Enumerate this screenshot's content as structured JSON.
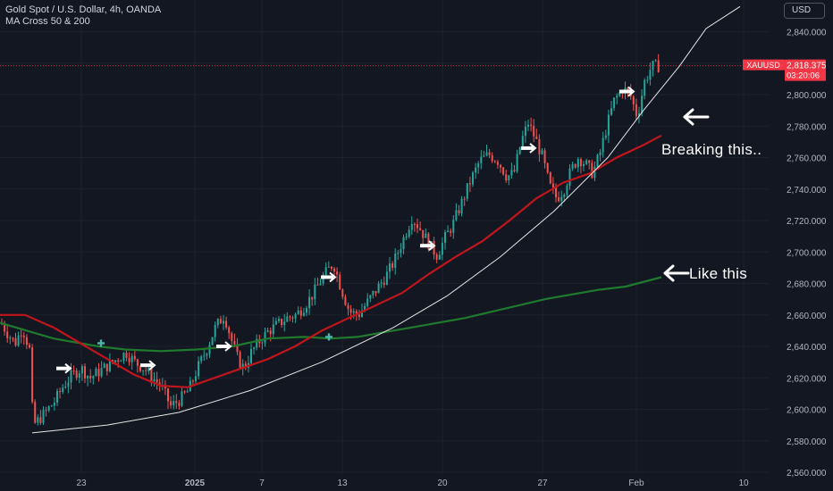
{
  "header": {
    "symbol_title": "Gold Spot / U.S. Dollar, 4h, OANDA",
    "indicator": "MA Cross 50 & 200"
  },
  "currency_button": "USD",
  "price_label": {
    "symbol": "XAUUSD",
    "price": "2,818.375",
    "countdown": "03:20:06"
  },
  "annotations": {
    "breaking": "Breaking this..",
    "like": "Like this"
  },
  "colors": {
    "background": "#131722",
    "up_candle": "#26a69a",
    "down_candle": "#ef5350",
    "ma50": "#c0161b",
    "ma200": "#1f7a2e",
    "price_tag": "#f23645",
    "curve": "#e6e6e6",
    "cross_marker": "#4db6ac"
  },
  "chart_data": {
    "type": "candlestick",
    "title": "Gold Spot / U.S. Dollar, 4h, OANDA",
    "indicator": "MA Cross 50 & 200",
    "x_ticks": [
      "23",
      "2025",
      "7",
      "13",
      "20",
      "27",
      "Feb",
      "10"
    ],
    "y_ticks": [
      2560,
      2580,
      2600,
      2620,
      2640,
      2660,
      2680,
      2700,
      2720,
      2740,
      2760,
      2780,
      2800,
      2820,
      2840
    ],
    "y_tick_labels": [
      "2,560.000",
      "2,580.000",
      "2,600.000",
      "2,620.000",
      "2,640.000",
      "2,660.000",
      "2,680.000",
      "2,700.000",
      "2,720.000",
      "2,740.000",
      "2,760.000",
      "2,780.000",
      "2,800.000",
      "2,820.000",
      "2,840.000"
    ],
    "ylim": [
      2556,
      2850
    ],
    "last_price": 2818.375,
    "close_path": [
      [
        0,
        2655
      ],
      [
        8,
        2648
      ],
      [
        16,
        2642
      ],
      [
        24,
        2652
      ],
      [
        32,
        2638
      ],
      [
        36,
        2590
      ],
      [
        40,
        2592
      ],
      [
        50,
        2598
      ],
      [
        60,
        2605
      ],
      [
        70,
        2615
      ],
      [
        80,
        2622
      ],
      [
        90,
        2626
      ],
      [
        100,
        2620
      ],
      [
        110,
        2624
      ],
      [
        120,
        2628
      ],
      [
        130,
        2632
      ],
      [
        140,
        2636
      ],
      [
        150,
        2630
      ],
      [
        160,
        2626
      ],
      [
        170,
        2620
      ],
      [
        180,
        2614
      ],
      [
        190,
        2602
      ],
      [
        200,
        2606
      ],
      [
        210,
        2612
      ],
      [
        220,
        2626
      ],
      [
        230,
        2638
      ],
      [
        240,
        2652
      ],
      [
        250,
        2660
      ],
      [
        258,
        2644
      ],
      [
        265,
        2632
      ],
      [
        272,
        2626
      ],
      [
        280,
        2636
      ],
      [
        290,
        2644
      ],
      [
        300,
        2650
      ],
      [
        310,
        2654
      ],
      [
        320,
        2658
      ],
      [
        330,
        2660
      ],
      [
        340,
        2666
      ],
      [
        350,
        2674
      ],
      [
        360,
        2684
      ],
      [
        372,
        2693
      ],
      [
        380,
        2678
      ],
      [
        390,
        2662
      ],
      [
        400,
        2660
      ],
      [
        410,
        2668
      ],
      [
        420,
        2676
      ],
      [
        430,
        2684
      ],
      [
        440,
        2694
      ],
      [
        450,
        2708
      ],
      [
        460,
        2722
      ],
      [
        470,
        2714
      ],
      [
        480,
        2704
      ],
      [
        488,
        2698
      ],
      [
        496,
        2708
      ],
      [
        506,
        2718
      ],
      [
        516,
        2732
      ],
      [
        526,
        2746
      ],
      [
        536,
        2758
      ],
      [
        546,
        2762
      ],
      [
        556,
        2758
      ],
      [
        566,
        2748
      ],
      [
        574,
        2750
      ],
      [
        582,
        2770
      ],
      [
        590,
        2782
      ],
      [
        598,
        2772
      ],
      [
        606,
        2760
      ],
      [
        614,
        2742
      ],
      [
        622,
        2734
      ],
      [
        630,
        2740
      ],
      [
        638,
        2752
      ],
      [
        646,
        2760
      ],
      [
        654,
        2756
      ],
      [
        662,
        2750
      ],
      [
        670,
        2762
      ],
      [
        678,
        2780
      ],
      [
        686,
        2796
      ],
      [
        696,
        2804
      ],
      [
        704,
        2800
      ],
      [
        712,
        2786
      ],
      [
        720,
        2808
      ],
      [
        728,
        2818
      ],
      [
        736,
        2818
      ]
    ],
    "ma50": [
      [
        0,
        2660
      ],
      [
        28,
        2660
      ],
      [
        60,
        2652
      ],
      [
        90,
        2642
      ],
      [
        120,
        2632
      ],
      [
        150,
        2622
      ],
      [
        180,
        2615
      ],
      [
        210,
        2614
      ],
      [
        240,
        2620
      ],
      [
        270,
        2626
      ],
      [
        300,
        2632
      ],
      [
        330,
        2640
      ],
      [
        360,
        2650
      ],
      [
        390,
        2658
      ],
      [
        420,
        2666
      ],
      [
        450,
        2674
      ],
      [
        480,
        2686
      ],
      [
        510,
        2697
      ],
      [
        540,
        2707
      ],
      [
        570,
        2720
      ],
      [
        600,
        2734
      ],
      [
        630,
        2744
      ],
      [
        660,
        2750
      ],
      [
        690,
        2760
      ],
      [
        720,
        2768
      ],
      [
        740,
        2774
      ]
    ],
    "ma200": [
      [
        0,
        2655
      ],
      [
        30,
        2650
      ],
      [
        60,
        2645
      ],
      [
        90,
        2642
      ],
      [
        110,
        2640
      ],
      [
        140,
        2638
      ],
      [
        180,
        2637
      ],
      [
        220,
        2638
      ],
      [
        260,
        2640
      ],
      [
        300,
        2645
      ],
      [
        340,
        2646
      ],
      [
        370,
        2645
      ],
      [
        400,
        2646
      ],
      [
        430,
        2649
      ],
      [
        460,
        2652
      ],
      [
        490,
        2655
      ],
      [
        520,
        2658
      ],
      [
        550,
        2662
      ],
      [
        580,
        2666
      ],
      [
        610,
        2670
      ],
      [
        640,
        2673
      ],
      [
        670,
        2676
      ],
      [
        700,
        2678
      ],
      [
        740,
        2684
      ]
    ],
    "ma_crosses": [
      [
        113,
        2642
      ],
      [
        368,
        2646
      ]
    ],
    "arrow_markers": [
      [
        76,
        2626
      ],
      [
        170,
        2628
      ],
      [
        255,
        2640
      ],
      [
        372,
        2684
      ],
      [
        483,
        2704
      ],
      [
        596,
        2766
      ],
      [
        706,
        2802
      ]
    ],
    "curve": [
      [
        36,
        2585
      ],
      [
        120,
        2590
      ],
      [
        200,
        2598
      ],
      [
        280,
        2612
      ],
      [
        360,
        2630
      ],
      [
        440,
        2652
      ],
      [
        500,
        2672
      ],
      [
        560,
        2697
      ],
      [
        620,
        2726
      ],
      [
        680,
        2760
      ],
      [
        720,
        2790
      ],
      [
        760,
        2818
      ],
      [
        790,
        2842
      ],
      [
        828,
        2856
      ]
    ]
  }
}
